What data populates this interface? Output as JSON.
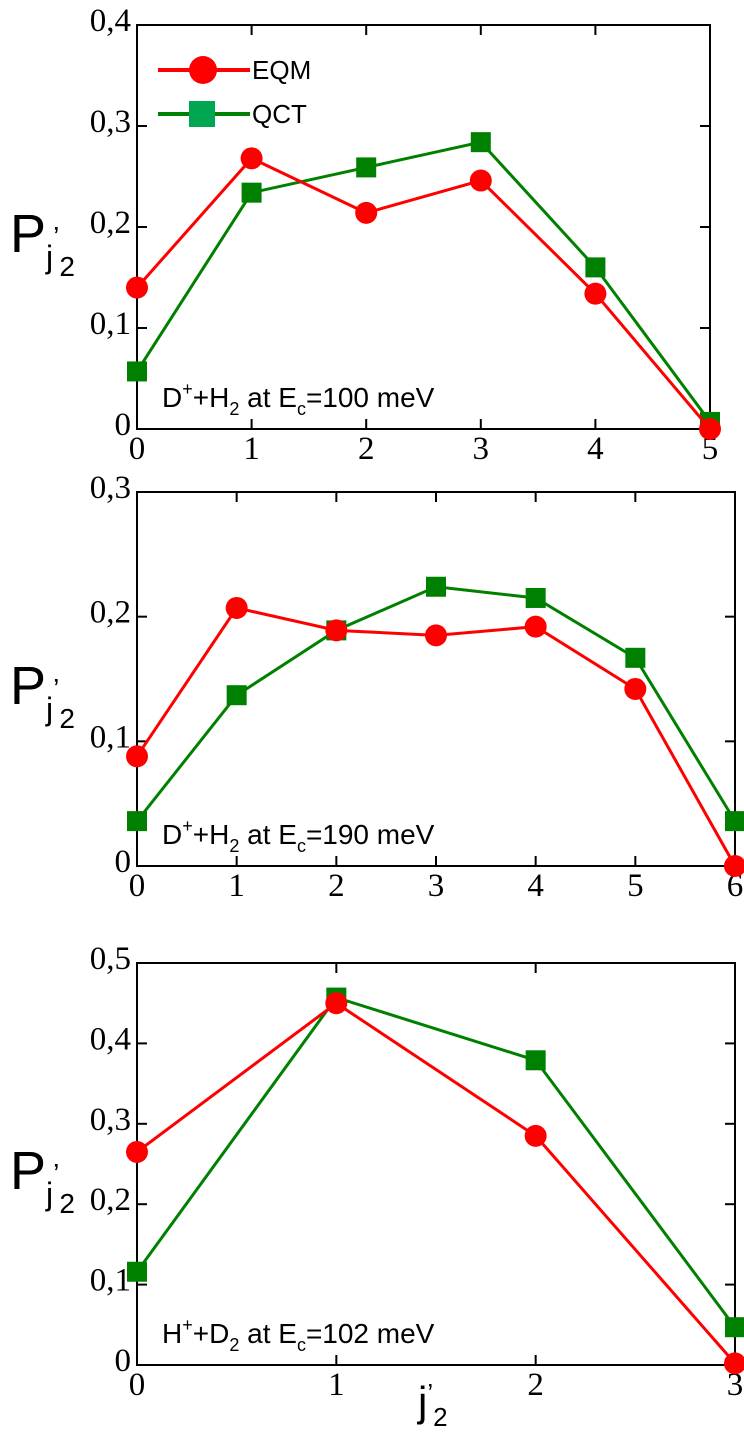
{
  "colors": {
    "eqm": "#ff0000",
    "qct": "#008000",
    "qct_marker_fill": "#00a651",
    "axes": "#000000"
  },
  "legend": {
    "placement": "top-left of first panel",
    "entries": [
      {
        "label": "EQM",
        "marker": "circle",
        "color": "#ff0000"
      },
      {
        "label": "QCT",
        "marker": "square",
        "color": "#008000"
      }
    ]
  },
  "ylabel": {
    "main": "P",
    "sub": "j",
    "prime": "’",
    "subsub": "2"
  },
  "xlabel": {
    "main": "j",
    "prime": "’",
    "sub": "2"
  },
  "chart_data": [
    {
      "type": "line",
      "x": [
        0,
        1,
        2,
        3,
        4,
        5
      ],
      "xlim": [
        0,
        5
      ],
      "ylim": [
        0,
        0.4
      ],
      "xticks": [
        "0",
        "1",
        "2",
        "3",
        "4",
        "5"
      ],
      "yticks": [
        "0",
        "0,1",
        "0,2",
        "0,3",
        "0,4"
      ],
      "grid": false,
      "annotation": {
        "p1": "D",
        "sup1": "+",
        "p2": "+H",
        "sub1": "2",
        "p3": " at E",
        "sub2": "c",
        "p4": "=100 meV"
      },
      "series": [
        {
          "name": "EQM",
          "values": [
            0.14,
            0.268,
            0.214,
            0.246,
            0.134,
            0.0
          ]
        },
        {
          "name": "QCT",
          "values": [
            0.057,
            0.234,
            0.259,
            0.284,
            0.16,
            0.007
          ]
        }
      ]
    },
    {
      "type": "line",
      "x": [
        0,
        1,
        2,
        3,
        4,
        5,
        6
      ],
      "xlim": [
        0,
        6
      ],
      "ylim": [
        0,
        0.3
      ],
      "xticks": [
        "0",
        "1",
        "2",
        "3",
        "4",
        "5",
        "6"
      ],
      "yticks": [
        "0",
        "0,1",
        "0,2",
        "0,3"
      ],
      "grid": false,
      "annotation": {
        "p1": "D",
        "sup1": "+",
        "p2": "+H",
        "sub1": "2",
        "p3": " at E",
        "sub2": "c",
        "p4": "=190 meV"
      },
      "series": [
        {
          "name": "EQM",
          "values": [
            0.088,
            0.207,
            0.189,
            0.185,
            0.192,
            0.142,
            0.0
          ]
        },
        {
          "name": "QCT",
          "values": [
            0.036,
            0.137,
            0.189,
            0.224,
            0.215,
            0.167,
            0.036
          ]
        }
      ]
    },
    {
      "type": "line",
      "x": [
        0,
        1,
        2,
        3
      ],
      "xlim": [
        0,
        3
      ],
      "ylim": [
        0,
        0.5
      ],
      "xticks": [
        "0",
        "1",
        "2",
        "3"
      ],
      "yticks": [
        "0",
        "0,1",
        "0,2",
        "0,3",
        "0,4",
        "0,5"
      ],
      "grid": false,
      "annotation": {
        "p1": "H",
        "sup1": "+",
        "p2": "+D",
        "sub1": "2",
        "p3": " at E",
        "sub2": "c",
        "p4": "=102 meV"
      },
      "series": [
        {
          "name": "EQM",
          "values": [
            0.265,
            0.45,
            0.285,
            0.002
          ]
        },
        {
          "name": "QCT",
          "values": [
            0.116,
            0.457,
            0.379,
            0.047
          ]
        }
      ]
    }
  ]
}
